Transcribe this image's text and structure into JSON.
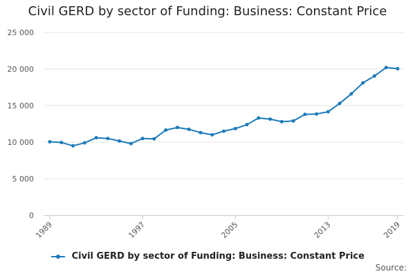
{
  "chart_data": {
    "type": "line",
    "title": "Civil GERD by sector of Funding: Business: Constant Price",
    "xlabel": "",
    "ylabel": "",
    "ylim": [
      0,
      25000
    ],
    "y_ticks": [
      0,
      5000,
      10000,
      15000,
      20000,
      25000
    ],
    "y_tick_labels": [
      "0",
      "5 000",
      "10 000",
      "15 000",
      "20 000",
      "25 000"
    ],
    "x_ticks": [
      1989,
      1997,
      2005,
      2013,
      2019
    ],
    "x_tick_labels": [
      "1989",
      "1997",
      "2005",
      "2013",
      "2019"
    ],
    "xlim": [
      1989,
      2019
    ],
    "grid": "horizontal",
    "legend_position": "bottom",
    "series": [
      {
        "name": "Civil GERD by sector of Funding: Business: Constant Price",
        "color": "#1a7ab8",
        "x": [
          1989,
          1990,
          1991,
          1992,
          1993,
          1994,
          1995,
          1996,
          1997,
          1998,
          1999,
          2000,
          2001,
          2002,
          2003,
          2004,
          2005,
          2006,
          2007,
          2008,
          2009,
          2010,
          2011,
          2012,
          2013,
          2014,
          2015,
          2016,
          2017,
          2018,
          2019
        ],
        "values": [
          10050,
          9950,
          9500,
          9900,
          10600,
          10500,
          10150,
          9800,
          10500,
          10450,
          11650,
          12000,
          11750,
          11300,
          11000,
          11500,
          11850,
          12400,
          13300,
          13150,
          12800,
          12900,
          13800,
          13850,
          14150,
          15300,
          16600,
          18100,
          19050,
          20200,
          20050
        ]
      }
    ]
  },
  "footer": {
    "source_label": "Source:"
  }
}
